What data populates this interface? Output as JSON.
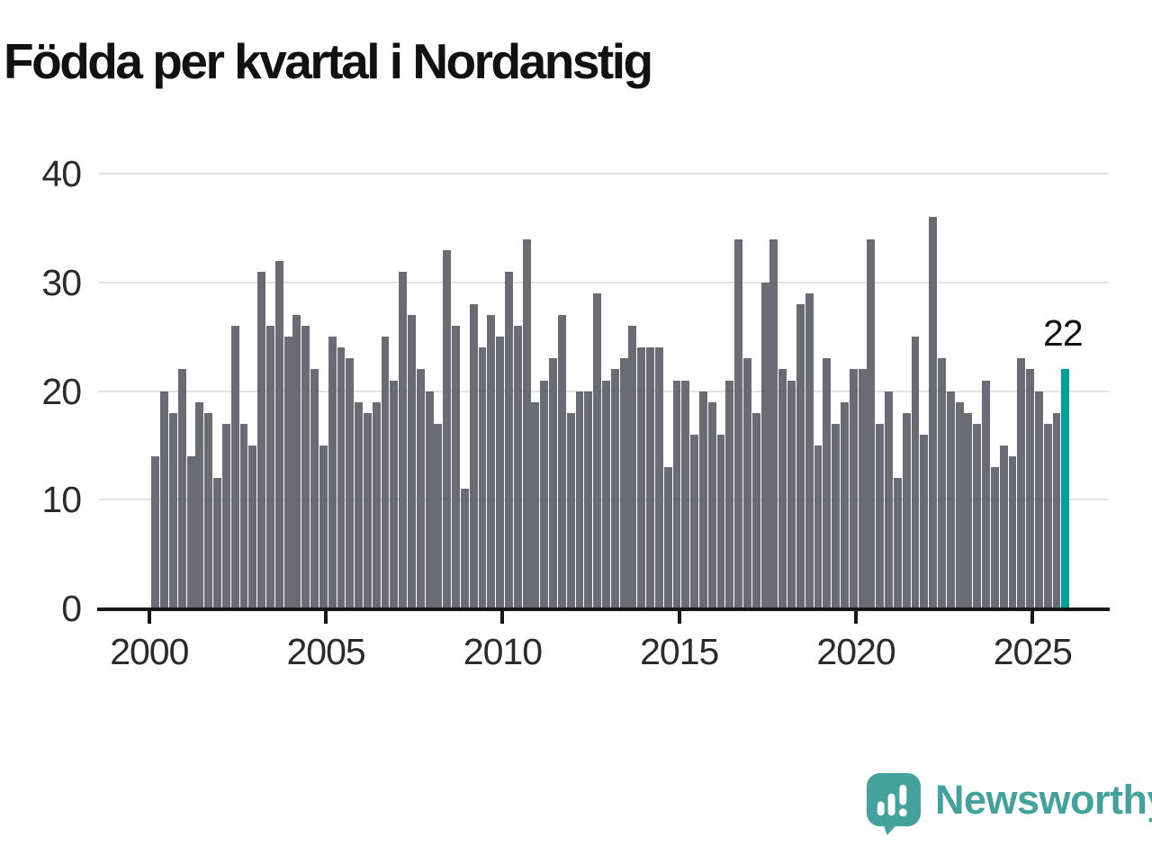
{
  "title": "Födda per kvartal i Nordanstig",
  "annotation": {
    "last_value_label": "22"
  },
  "branding": {
    "name": "Newsworthy",
    "icon": "newsworthy-speech-bubble-bar-chart-icon"
  },
  "colors": {
    "bar": "#6b6b74",
    "highlight": "#00a096",
    "grid": "#e3e3e3",
    "axis": "#161616",
    "tick_text": "#2b2b2b",
    "title_text": "#111111",
    "logo_teal": "#43a39c"
  },
  "chart_data": {
    "type": "bar",
    "title": "Födda per kvartal i Nordanstig",
    "x_unit": "quarter",
    "start_year": 2000,
    "x_range": [
      "2000 Q1",
      "2025 Q4"
    ],
    "x_tick_labels": [
      "2000",
      "2005",
      "2010",
      "2015",
      "2020",
      "2025"
    ],
    "y_tick_values": [
      0,
      10,
      20,
      30,
      40
    ],
    "ylim": [
      0,
      40
    ],
    "grid": "horizontal",
    "legend": "none",
    "highlight_index": 103,
    "highlight_value": 22,
    "values": [
      14,
      20,
      18,
      22,
      14,
      19,
      18,
      12,
      17,
      26,
      17,
      15,
      31,
      26,
      32,
      25,
      27,
      26,
      22,
      15,
      25,
      24,
      23,
      19,
      18,
      19,
      25,
      21,
      31,
      27,
      22,
      20,
      17,
      33,
      26,
      11,
      28,
      24,
      27,
      25,
      31,
      26,
      34,
      19,
      21,
      23,
      27,
      18,
      20,
      20,
      29,
      21,
      22,
      23,
      26,
      24,
      24,
      24,
      13,
      21,
      21,
      16,
      20,
      19,
      16,
      21,
      34,
      23,
      18,
      30,
      34,
      22,
      21,
      28,
      29,
      15,
      23,
      17,
      19,
      22,
      22,
      34,
      17,
      20,
      12,
      18,
      25,
      16,
      36,
      23,
      20,
      19,
      18,
      17,
      21,
      13,
      15,
      14,
      23,
      22,
      20,
      17,
      18,
      22
    ]
  }
}
